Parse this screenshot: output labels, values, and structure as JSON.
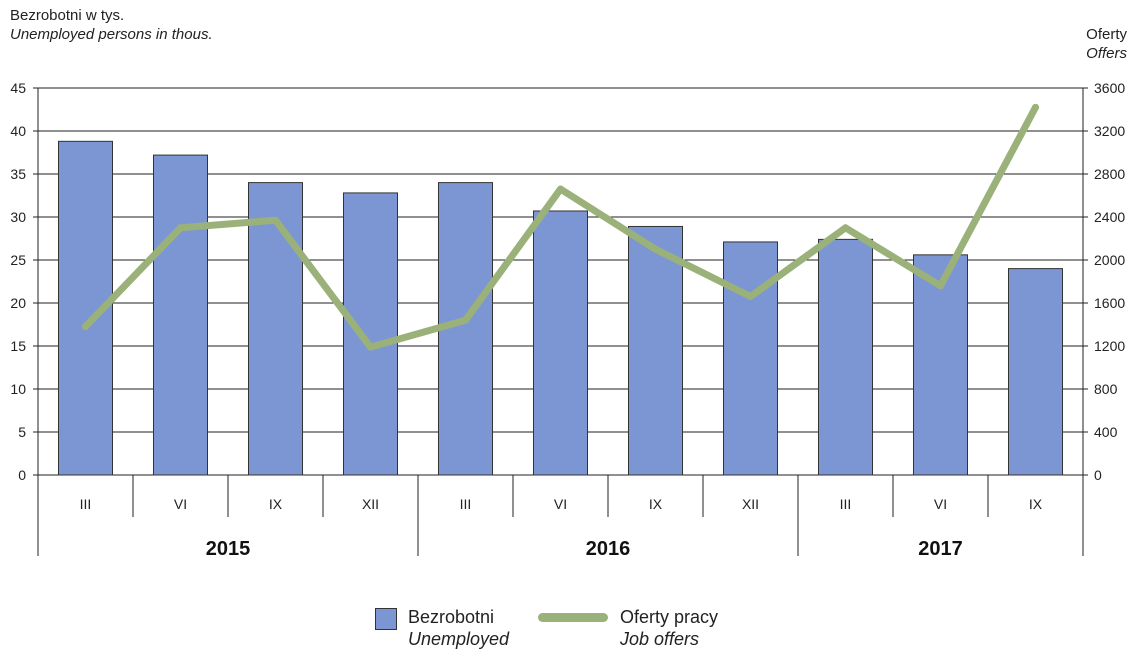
{
  "titles": {
    "left_label": "Bezrobotni w tys.",
    "left_label_en": "Unemployed persons in thous.",
    "right_label": "Oferty",
    "right_label_en": "Offers"
  },
  "legend": {
    "bars_label": "Bezrobotni",
    "bars_label_en": "Unemployed",
    "line_label": "Oferty pracy",
    "line_label_en": "Job offers"
  },
  "colors": {
    "bar_fill": "#7b96d2",
    "bar_stroke": "#333333",
    "line": "#9bb17a",
    "grid": "#222222"
  },
  "chart_data": {
    "type": "bar",
    "categories": [
      "III",
      "VI",
      "IX",
      "XII",
      "III",
      "VI",
      "IX",
      "XII",
      "III",
      "VI",
      "IX"
    ],
    "groups": [
      {
        "label": "2015",
        "count": 4
      },
      {
        "label": "2016",
        "count": 4
      },
      {
        "label": "2017",
        "count": 3
      }
    ],
    "series": [
      {
        "name": "Bezrobotni",
        "type": "bar",
        "axis": "left",
        "values": [
          38.8,
          37.2,
          34.0,
          32.8,
          34.0,
          30.7,
          28.9,
          27.1,
          27.4,
          25.6,
          24.0
        ]
      },
      {
        "name": "Oferty pracy",
        "type": "line",
        "axis": "right",
        "values": [
          1380,
          2300,
          2370,
          1190,
          1440,
          2660,
          2100,
          1660,
          2300,
          1760,
          3420
        ]
      }
    ],
    "y_left": {
      "min": 0,
      "max": 45,
      "step": 5,
      "ticks": [
        "0",
        "5",
        "10",
        "15",
        "20",
        "25",
        "30",
        "35",
        "40",
        "45"
      ]
    },
    "y_right": {
      "min": 0,
      "max": 3600,
      "step": 400,
      "ticks": [
        "0",
        "400",
        "800",
        "1200",
        "1600",
        "2000",
        "2400",
        "2800",
        "3200",
        "3600"
      ]
    },
    "grid": true,
    "legend_position": "bottom"
  }
}
